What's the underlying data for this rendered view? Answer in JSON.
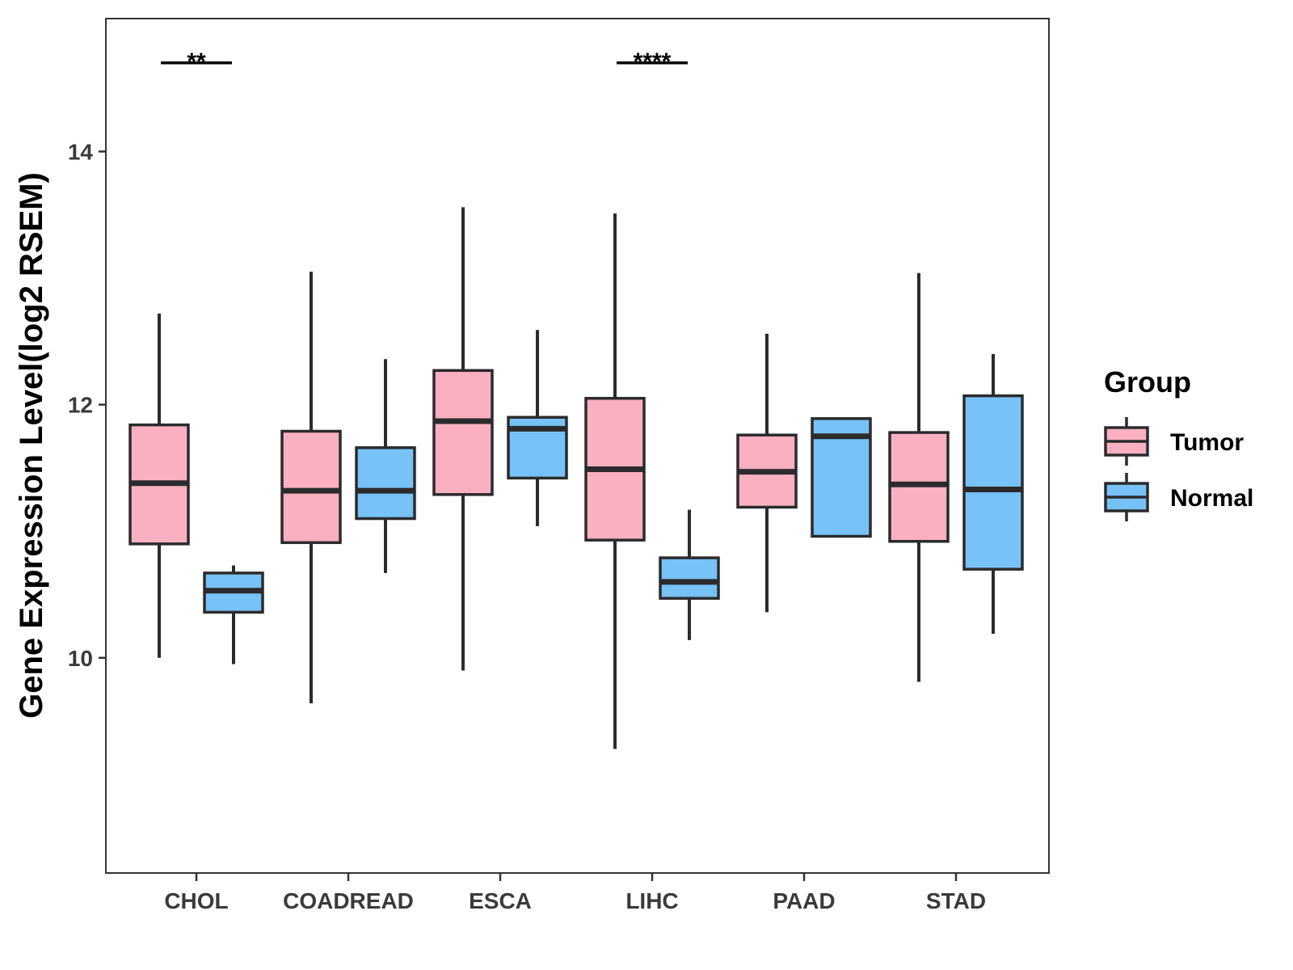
{
  "chart_data": {
    "type": "box",
    "title": "",
    "xlabel": "",
    "ylabel": "Gene Expression Level(log2 RSEM)",
    "ylim": [
      8.3,
      15.05
    ],
    "yticks": [
      10,
      12,
      14
    ],
    "grid": false,
    "categories": [
      "CHOL",
      "COADREAD",
      "ESCA",
      "LIHC",
      "PAAD",
      "STAD"
    ],
    "legend": {
      "title": "Group",
      "position": "right",
      "entries": [
        {
          "name": "Tumor",
          "color": "#FBB0C2"
        },
        {
          "name": "Normal",
          "color": "#77C2F8"
        }
      ]
    },
    "series": [
      {
        "name": "Tumor",
        "color": "#FBB0C2",
        "boxes": [
          {
            "category": "CHOL",
            "min": 10.0,
            "q1": 10.9,
            "median": 11.38,
            "q3": 11.84,
            "max": 12.72
          },
          {
            "category": "COADREAD",
            "min": 9.64,
            "q1": 10.91,
            "median": 11.32,
            "q3": 11.79,
            "max": 13.05
          },
          {
            "category": "ESCA",
            "min": 9.9,
            "q1": 11.29,
            "median": 11.87,
            "q3": 12.27,
            "max": 13.56
          },
          {
            "category": "LIHC",
            "min": 9.28,
            "q1": 10.93,
            "median": 11.49,
            "q3": 12.05,
            "max": 13.51
          },
          {
            "category": "PAAD",
            "min": 10.36,
            "q1": 11.19,
            "median": 11.47,
            "q3": 11.76,
            "max": 12.56
          },
          {
            "category": "STAD",
            "min": 9.81,
            "q1": 10.92,
            "median": 11.37,
            "q3": 11.78,
            "max": 13.04
          }
        ]
      },
      {
        "name": "Normal",
        "color": "#77C2F8",
        "boxes": [
          {
            "category": "CHOL",
            "min": 9.95,
            "q1": 10.36,
            "median": 10.53,
            "q3": 10.67,
            "max": 10.73
          },
          {
            "category": "COADREAD",
            "min": 10.67,
            "q1": 11.1,
            "median": 11.32,
            "q3": 11.66,
            "max": 12.36
          },
          {
            "category": "ESCA",
            "min": 11.04,
            "q1": 11.42,
            "median": 11.81,
            "q3": 11.9,
            "max": 12.59
          },
          {
            "category": "LIHC",
            "min": 10.14,
            "q1": 10.47,
            "median": 10.6,
            "q3": 10.79,
            "max": 11.17
          },
          {
            "category": "PAAD",
            "min": 10.96,
            "q1": 10.96,
            "median": 11.75,
            "q3": 11.89,
            "max": 11.89
          },
          {
            "category": "STAD",
            "min": 10.19,
            "q1": 10.7,
            "median": 11.33,
            "q3": 12.07,
            "max": 12.4
          }
        ]
      }
    ],
    "annotations": [
      {
        "category": "CHOL",
        "text": "**",
        "y": 14.7
      },
      {
        "category": "LIHC",
        "text": "****",
        "y": 14.7
      }
    ]
  }
}
